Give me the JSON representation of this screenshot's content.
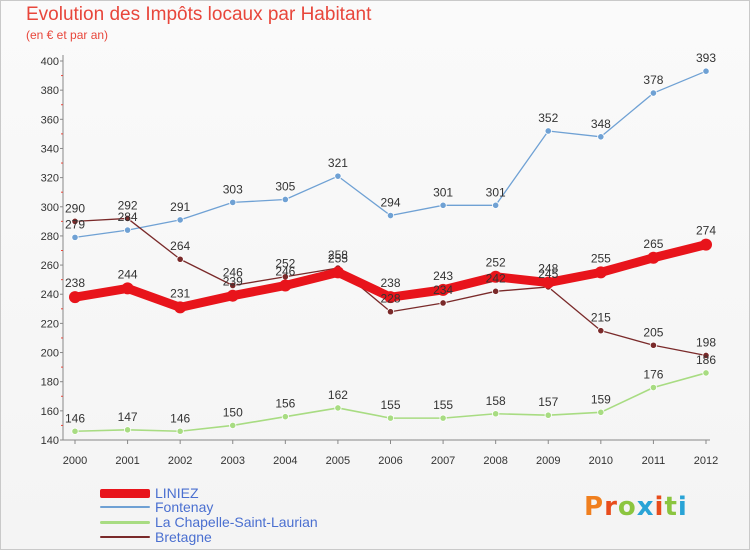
{
  "title": "Evolution des Impôts locaux par Habitant",
  "subtitle": "(en € et par an)",
  "logo": {
    "text": "Proxiti",
    "colors": [
      "#f07f1e",
      "#e84c1c",
      "#8bc53f",
      "#29a3d6",
      "#e84c1c",
      "#8bc53f",
      "#29a3d6"
    ]
  },
  "chart_data": {
    "type": "line",
    "title": "Evolution des Impôts locaux par Habitant",
    "subtitle": "(en € et par an)",
    "x": [
      "2000",
      "2001",
      "2002",
      "2003",
      "2004",
      "2005",
      "2006",
      "2007",
      "2008",
      "2009",
      "2010",
      "2011",
      "2012"
    ],
    "ylim": [
      140,
      400
    ],
    "yticks": [
      140,
      160,
      180,
      200,
      220,
      240,
      260,
      280,
      300,
      320,
      340,
      360,
      380,
      400
    ],
    "grid": false,
    "legend_position": "bottom-left",
    "series": [
      {
        "name": "LINIEZ",
        "color": "#e8141b",
        "values": [
          238,
          244,
          231,
          239,
          246,
          255,
          238,
          243,
          252,
          248,
          255,
          265,
          274
        ]
      },
      {
        "name": "Fontenay",
        "color": "#6fa1d4",
        "values": [
          279,
          284,
          291,
          303,
          305,
          321,
          294,
          301,
          301,
          352,
          348,
          378,
          393
        ]
      },
      {
        "name": "La Chapelle-Saint-Laurian",
        "color": "#a8dc82",
        "values": [
          146,
          147,
          146,
          150,
          156,
          162,
          155,
          155,
          158,
          157,
          159,
          176,
          186
        ]
      },
      {
        "name": "Bretagne",
        "color": "#7a2a2a",
        "values": [
          290,
          292,
          264,
          246,
          252,
          258,
          228,
          234,
          242,
          245,
          215,
          205,
          198
        ]
      }
    ]
  }
}
